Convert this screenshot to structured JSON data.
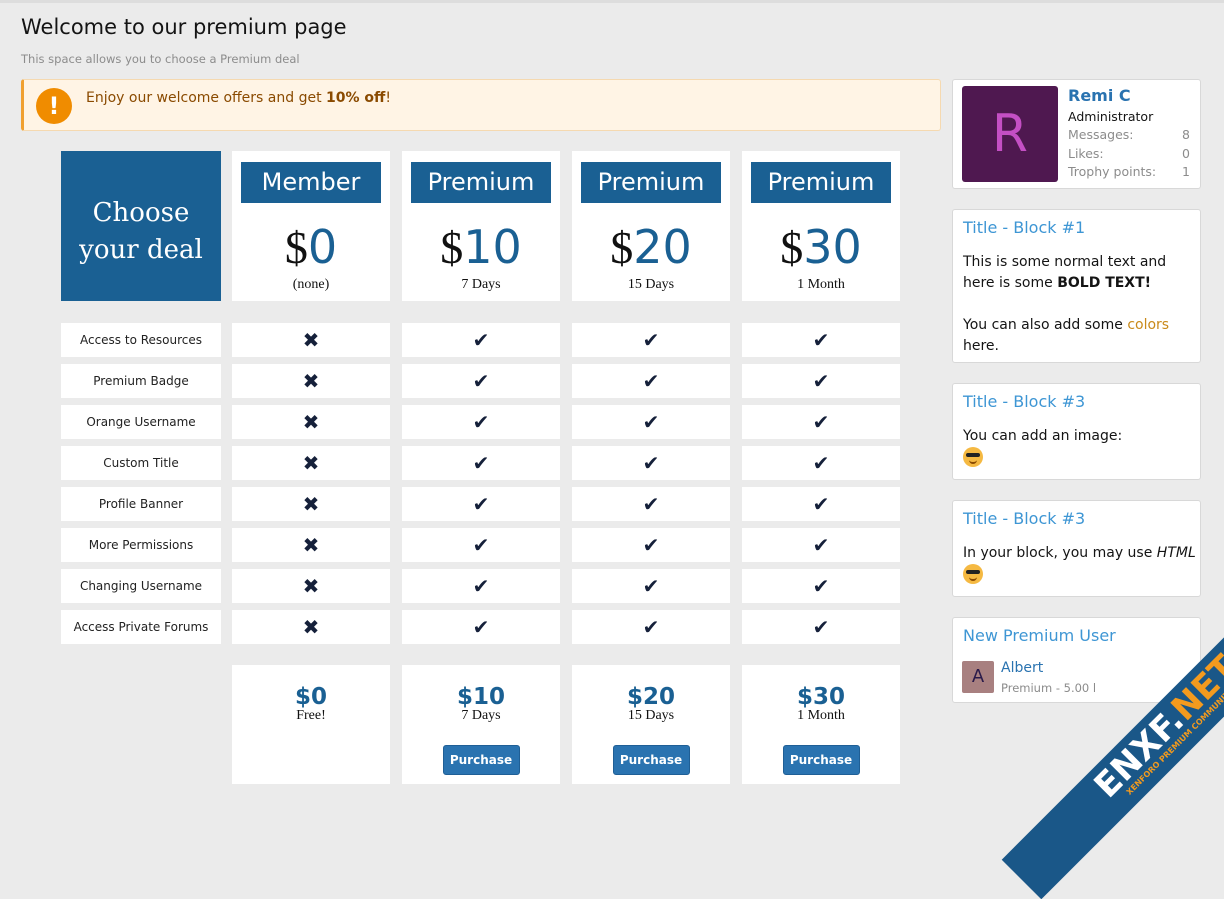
{
  "page": {
    "title": "Welcome to our premium page",
    "subtitle": "This space allows you to choose a Premium deal"
  },
  "notice": {
    "text_before": "Enjoy our welcome offers and get ",
    "bold": "10% off",
    "text_after": "!",
    "icon": "exclamation-icon"
  },
  "table": {
    "heading": [
      "Choose",
      "your deal"
    ],
    "plans": [
      {
        "name": "Member",
        "currency": "$",
        "price": "0",
        "duration": "(none)",
        "footer_price": "$0",
        "footer_duration": "Free!",
        "button": null
      },
      {
        "name": "Premium",
        "currency": "$",
        "price": "10",
        "duration": "7 Days",
        "footer_price": "$10",
        "footer_duration": "7 Days",
        "button": "Purchase"
      },
      {
        "name": "Premium",
        "currency": "$",
        "price": "20",
        "duration": "15 Days",
        "footer_price": "$20",
        "footer_duration": "15 Days",
        "button": "Purchase"
      },
      {
        "name": "Premium",
        "currency": "$",
        "price": "30",
        "duration": "1 Month",
        "footer_price": "$30",
        "footer_duration": "1 Month",
        "button": "Purchase"
      }
    ],
    "features": [
      "Access to Resources",
      "Premium Badge",
      "Orange Username",
      "Custom Title",
      "Profile Banner",
      "More Permissions",
      "Changing Username",
      "Access Private Forums"
    ],
    "availability": [
      [
        false,
        true,
        true,
        true
      ],
      [
        false,
        true,
        true,
        true
      ],
      [
        false,
        true,
        true,
        true
      ],
      [
        false,
        true,
        true,
        true
      ],
      [
        false,
        true,
        true,
        true
      ],
      [
        false,
        true,
        true,
        true
      ],
      [
        false,
        true,
        true,
        true
      ],
      [
        false,
        true,
        true,
        true
      ]
    ]
  },
  "sidebar": {
    "user": {
      "avatar_letter": "R",
      "name": "Remi C",
      "role": "Administrator",
      "stats": [
        {
          "label": "Messages:",
          "value": "8"
        },
        {
          "label": "Likes:",
          "value": "0"
        },
        {
          "label": "Trophy points:",
          "value": "1"
        }
      ]
    },
    "block1": {
      "title": "Title - Block #1",
      "line1": "This is some normal text and here is some ",
      "bold": "BOLD TEXT!",
      "line2": "You can also add some ",
      "colors_word": "colors",
      "line3": " here."
    },
    "block2": {
      "title": "Title - Block #3",
      "text": "You can add an image:"
    },
    "block3": {
      "title": "Title - Block #3",
      "text": "In your block, you may use ",
      "italic": "HTML"
    },
    "new_user": {
      "title": "New Premium User",
      "avatar_letter": "A",
      "name": "Albert",
      "meta": "Premium - 5.00 l"
    }
  },
  "watermark": {
    "text": "ENXF.NET",
    "tagline": "XENFORO PREMIUM COMMUNITY"
  },
  "colors": {
    "brand": "#1a6093",
    "button": "#2a73b0",
    "link": "#3e96d4",
    "notice_bg": "#fff4e5",
    "avatar_r": "#4f1850",
    "avatar_a": "#a88080"
  }
}
